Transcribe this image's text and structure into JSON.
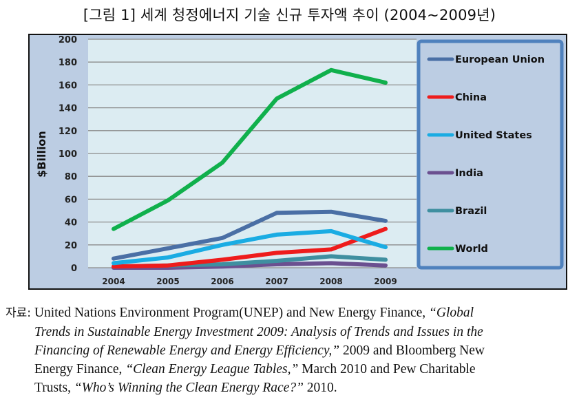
{
  "figure": {
    "title": "[그림 1] 세계 청정에너지 기술 신규 투자액 추이 (2004~2009년)"
  },
  "colors": {
    "frame_bg": "#bccde3",
    "plot_bg": "#dcecf2",
    "legend_border": "#4f81bd",
    "gridline": "#8a8a8a"
  },
  "chart_data": {
    "type": "line",
    "title": "",
    "xlabel": "",
    "ylabel": "$Billion",
    "x": [
      "2004",
      "2005",
      "2006",
      "2007",
      "2008",
      "2009"
    ],
    "ylim": [
      0,
      200
    ],
    "yticks": [
      0,
      20,
      40,
      60,
      80,
      100,
      120,
      140,
      160,
      180,
      200
    ],
    "grid": true,
    "legend_position": "right",
    "series": [
      {
        "name": "European Union",
        "color": "#4a6fa5",
        "values": [
          8,
          17,
          26,
          48,
          49,
          41
        ]
      },
      {
        "name": "China",
        "color": "#ee1c1c",
        "values": [
          1,
          2,
          7,
          13,
          16,
          34
        ]
      },
      {
        "name": "United States",
        "color": "#1aace3",
        "values": [
          4,
          9,
          20,
          29,
          32,
          18
        ]
      },
      {
        "name": "India",
        "color": "#6b5090",
        "values": [
          0,
          0,
          1,
          3,
          4,
          2
        ]
      },
      {
        "name": "Brazil",
        "color": "#3f8fa0",
        "values": [
          1,
          2,
          3,
          6,
          10,
          7
        ]
      },
      {
        "name": "World",
        "color": "#10b04c",
        "values": [
          34,
          59,
          92,
          148,
          173,
          162
        ]
      }
    ]
  },
  "source": {
    "prefix": "자료:",
    "line1_a": "United Nations Environment Program(UNEP) and New Energy Finance,",
    "line1_b": "“Global",
    "line2": "Trends in Sustainable Energy Investment 2009: Analysis of Trends and Issues in the",
    "line3_a": "Financing of Renewable Energy and Energy Efficiency,”",
    "line3_b": "2009 and Bloomberg New",
    "line4_a": "Energy Finance,",
    "line4_b": "“Clean Energy League Tables,”",
    "line4_c": "March 2010 and Pew Charitable",
    "line5_a": "Trusts,",
    "line5_b": "“Who’s Winning the Clean Energy Race?”",
    "line5_c": "2010."
  }
}
